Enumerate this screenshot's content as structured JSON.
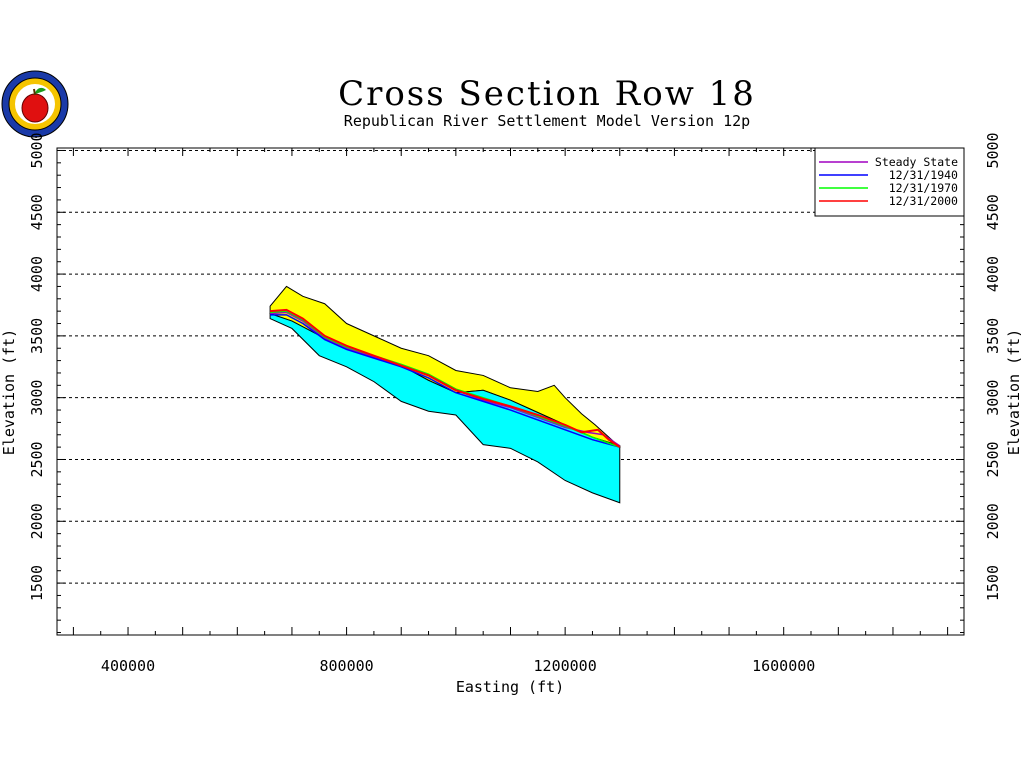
{
  "chart_data": {
    "type": "area",
    "title": "Cross Section Row 18",
    "subtitle": "Republican River Settlement Model Version 12p",
    "xlabel": "Easting (ft)",
    "ylabel": "Elevation (ft)",
    "xlim": [
      270000,
      1930000
    ],
    "ylim": [
      1080000,
      5020000
    ],
    "ylim_note": "",
    "xticks": [
      "400000",
      "800000",
      "1200000",
      "1600000"
    ],
    "xtick_values": [
      400000,
      800000,
      1200000,
      1600000
    ],
    "yticks_left": [
      "1500",
      "2000",
      "2500",
      "3000",
      "3500",
      "4000",
      "4500",
      "5000"
    ],
    "yticks_right": [
      "1500",
      "2000",
      "2500",
      "3000",
      "3500",
      "4000",
      "4500",
      "5000"
    ],
    "ytick_values": [
      1500,
      2000,
      2500,
      3000,
      3500,
      4000,
      4500,
      5000
    ],
    "grid": "horizontal dashed",
    "legend_position": "top-right",
    "colors": {
      "land_surface_fill": "#ffff00",
      "aquifer_fill": "#00ffff",
      "outline": "#000000"
    },
    "land_surface": {
      "x": [
        660000,
        690000,
        720000,
        760000,
        800000,
        850000,
        900000,
        950000,
        1000000,
        1050000,
        1100000,
        1150000,
        1180000,
        1200000,
        1230000,
        1255000,
        1270000,
        1300000
      ],
      "y": [
        3740,
        3900,
        3820,
        3760,
        3600,
        3500,
        3400,
        3340,
        3220,
        3180,
        3080,
        3050,
        3100,
        3000,
        2870,
        2780,
        2720,
        2600
      ]
    },
    "aquifer_top": {
      "x": [
        660000,
        700000,
        760000,
        800000,
        850000,
        900000,
        950000,
        1000000,
        1050000,
        1100000,
        1150000,
        1200000,
        1250000,
        1300000
      ],
      "y": [
        3680,
        3620,
        3480,
        3400,
        3340,
        3260,
        3140,
        3040,
        3060,
        2980,
        2880,
        2780,
        2680,
        2610
      ]
    },
    "aquifer_bottom": {
      "x": [
        660000,
        700000,
        750000,
        800000,
        850000,
        900000,
        950000,
        1000000,
        1050000,
        1100000,
        1150000,
        1200000,
        1250000,
        1300000
      ],
      "y": [
        3640,
        3560,
        3340,
        3250,
        3130,
        2970,
        2890,
        2860,
        2620,
        2590,
        2480,
        2330,
        2230,
        2150
      ]
    },
    "series": [
      {
        "name": "Steady State",
        "color": "#a000c0",
        "x": [
          660000,
          690000,
          720000,
          760000,
          800000,
          850000,
          900000,
          950000,
          1000000,
          1050000,
          1100000,
          1150000,
          1200000,
          1240000,
          1270000,
          1300000
        ],
        "y": [
          3680,
          3690,
          3620,
          3480,
          3400,
          3330,
          3260,
          3180,
          3060,
          2980,
          2920,
          2840,
          2760,
          2720,
          2700,
          2610
        ]
      },
      {
        "name": "12/31/1940",
        "color": "#0000ff",
        "x": [
          660000,
          690000,
          720000,
          760000,
          800000,
          850000,
          900000,
          950000,
          1000000,
          1050000,
          1100000,
          1150000,
          1200000,
          1250000,
          1300000
        ],
        "y": [
          3670,
          3670,
          3600,
          3470,
          3390,
          3320,
          3250,
          3160,
          3040,
          2970,
          2900,
          2820,
          2740,
          2660,
          2600
        ]
      },
      {
        "name": "12/31/1970",
        "color": "#00ff00",
        "x": [
          660000,
          690000,
          720000,
          760000,
          800000,
          850000,
          900000,
          950000,
          1000000,
          1050000,
          1100000,
          1150000,
          1200000,
          1250000,
          1300000
        ],
        "y": [
          3690,
          3700,
          3630,
          3490,
          3410,
          3340,
          3270,
          3190,
          3070,
          3000,
          2930,
          2850,
          2770,
          2680,
          2600
        ]
      },
      {
        "name": "12/31/2000",
        "color": "#ff0000",
        "x": [
          660000,
          690000,
          720000,
          760000,
          800000,
          850000,
          900000,
          950000,
          1000000,
          1050000,
          1100000,
          1150000,
          1200000,
          1230000,
          1260000,
          1280000,
          1300000
        ],
        "y": [
          3700,
          3710,
          3640,
          3500,
          3420,
          3340,
          3260,
          3180,
          3060,
          2990,
          2930,
          2860,
          2780,
          2720,
          2740,
          2660,
          2600
        ]
      }
    ]
  }
}
